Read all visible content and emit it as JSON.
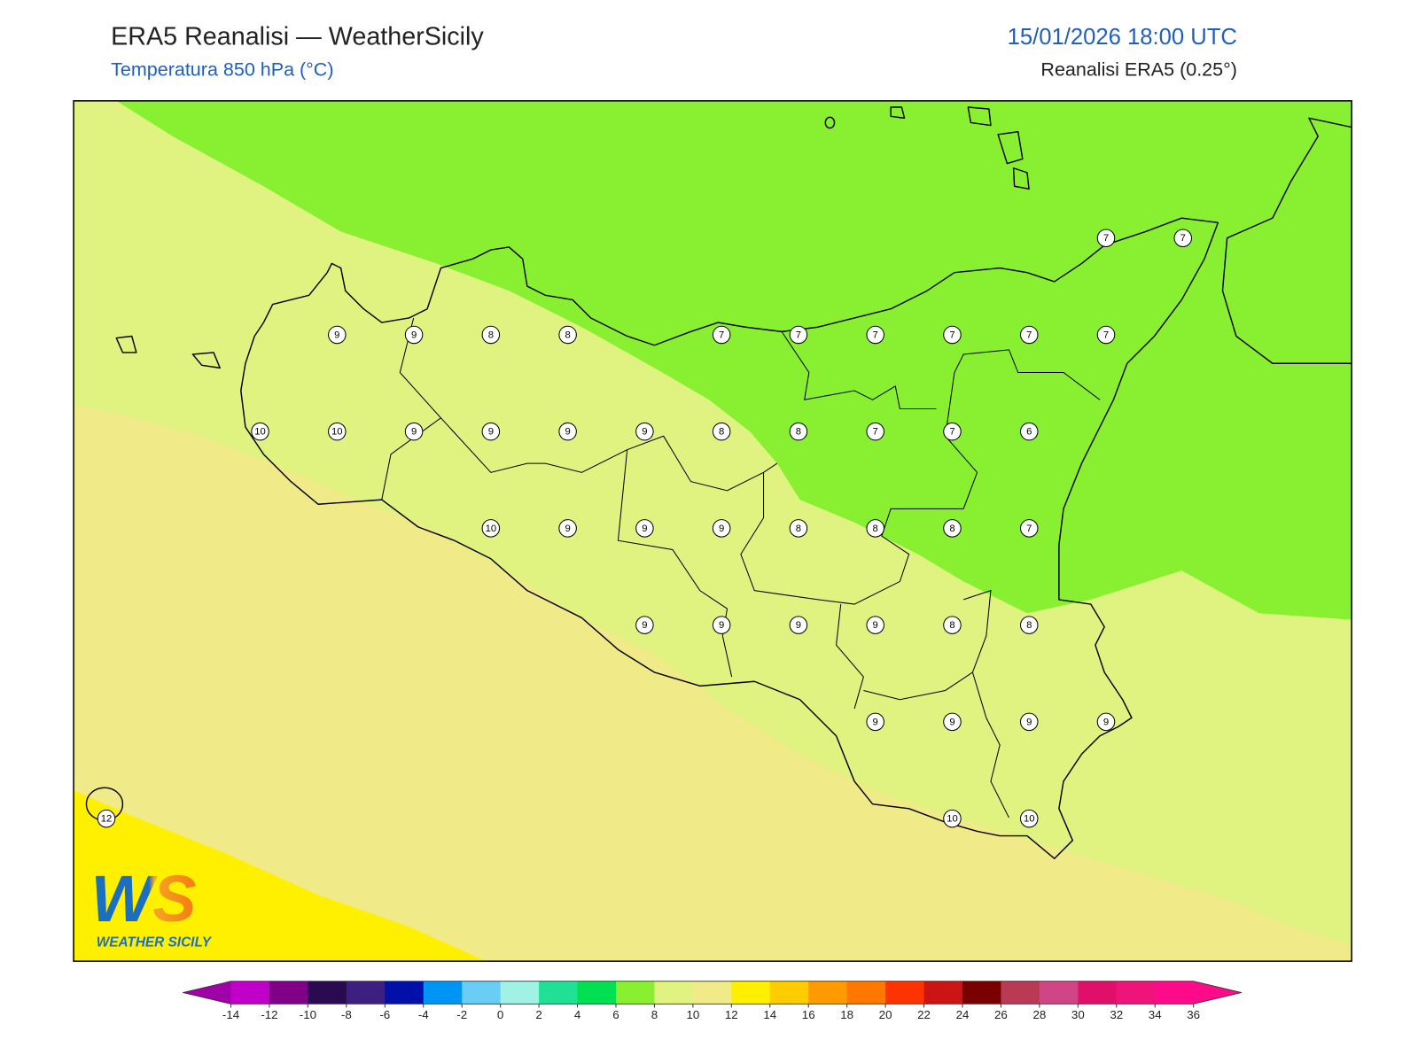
{
  "header": {
    "title": "ERA5 Reanalisi — WeatherSicily",
    "subtitle": "Temperatura 850 hPa (°C)",
    "datetime": "15/01/2026 18:00 UTC",
    "source": "Reanalisi ERA5 (0.25°)"
  },
  "points": [
    [
      null,
      null,
      null,
      null,
      null,
      null,
      null,
      null,
      null,
      null,
      null,
      null,
      null,
      7,
      7
    ],
    [
      null,
      null,
      null,
      9,
      9,
      8,
      8,
      null,
      7,
      7,
      7,
      7,
      7,
      7,
      null
    ],
    [
      null,
      null,
      10,
      10,
      9,
      9,
      9,
      9,
      8,
      8,
      7,
      7,
      6,
      null,
      null
    ],
    [
      null,
      null,
      null,
      null,
      null,
      10,
      9,
      9,
      9,
      8,
      8,
      8,
      7,
      null,
      null
    ],
    [
      null,
      null,
      null,
      null,
      null,
      null,
      null,
      9,
      9,
      9,
      9,
      8,
      8,
      null,
      null
    ],
    [
      null,
      null,
      null,
      null,
      null,
      null,
      null,
      null,
      null,
      null,
      9,
      9,
      9,
      9,
      null
    ],
    [
      12,
      null,
      null,
      null,
      null,
      null,
      null,
      null,
      null,
      null,
      null,
      10,
      10,
      null,
      null
    ]
  ],
  "colorbar": {
    "ticks": [
      -14,
      -12,
      -10,
      -8,
      -6,
      -4,
      -2,
      0,
      2,
      4,
      6,
      8,
      10,
      12,
      14,
      16,
      18,
      20,
      22,
      24,
      26,
      28,
      30,
      32,
      34,
      36
    ],
    "colors": [
      "#a000a8",
      "#c000c8",
      "#800088",
      "#2a0a50",
      "#3c1f80",
      "#0010a8",
      "#0095f5",
      "#6acdf5",
      "#a0f2e4",
      "#20e095",
      "#00e050",
      "#88f030",
      "#e0f280",
      "#f0ea88",
      "#fff000",
      "#ffcc00",
      "#ff9a00",
      "#ff7800",
      "#ff3300",
      "#cc1414",
      "#7a0000",
      "#b83a55",
      "#d04585",
      "#e0106a",
      "#ee1478",
      "#ff0a88",
      "#ff0a88"
    ]
  },
  "logo": {
    "mark": "WS",
    "name": "WEATHER SICILY"
  }
}
